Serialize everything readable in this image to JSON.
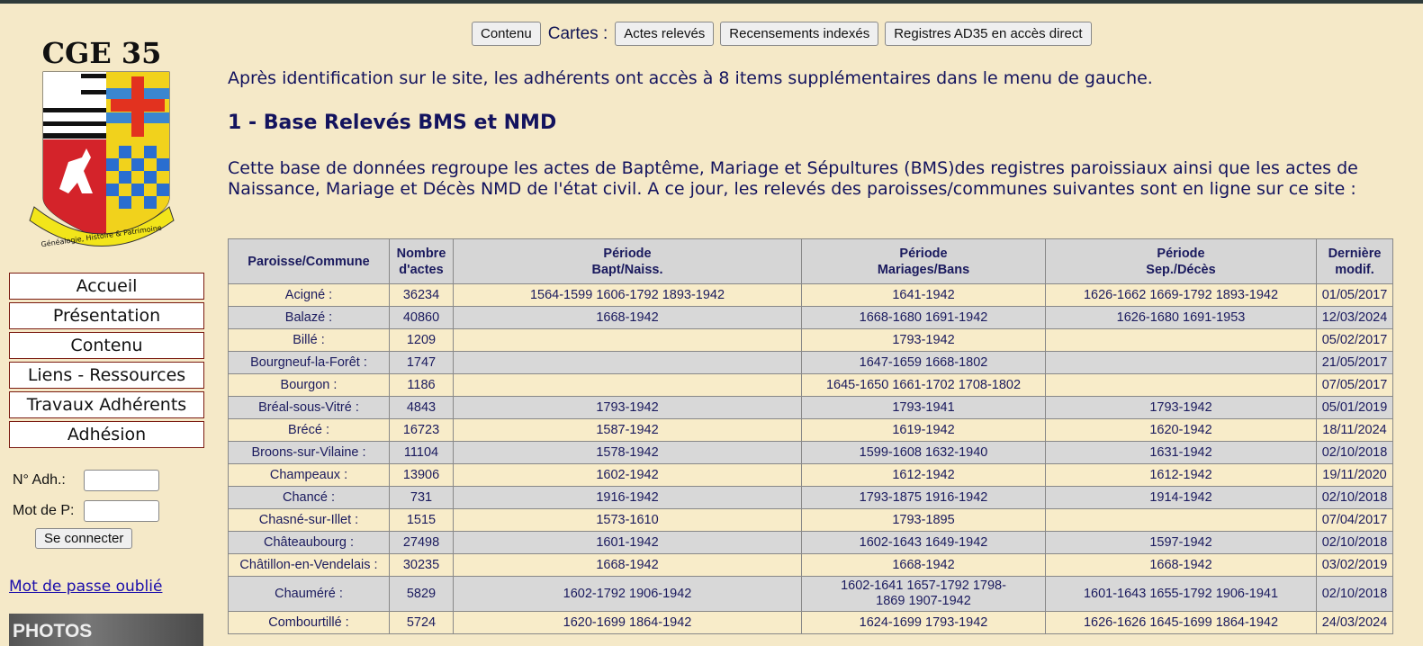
{
  "logo": {
    "title": "CGE 35",
    "ribbon": "Généalogie, Histoire & Patrimoine"
  },
  "sidebar": {
    "menu": [
      "Accueil",
      "Présentation",
      "Contenu",
      "Liens - Ressources",
      "Travaux Adhérents",
      "Adhésion"
    ],
    "login": {
      "member_label": "N° Adh.:",
      "password_label": "Mot de P:",
      "member_value": "",
      "password_value": "",
      "submit": "Se connecter"
    },
    "forgot": "Mot de passe oublié",
    "banner": "PHOTOS ANCIENNES"
  },
  "topnav": {
    "contenu": "Contenu",
    "cartes": "Cartes :",
    "actes": "Actes relevés",
    "recensements": "Recensements indexés",
    "registres": "Registres AD35 en accès direct"
  },
  "main": {
    "intro": "Après identification sur le site, les adhérents ont accès à 8 items supplémentaires dans le menu de gauche.",
    "heading": "1 - Base Relevés BMS et NMD",
    "description": "Cette base de données regroupe les actes de Baptême, Mariage et Sépultures (BMS)des registres paroissiaux ainsi que les actes de Naissance, Mariage et Décès NMD de l'état civil. A ce jour, les relevés des paroisses/communes suivantes sont en ligne sur ce site :"
  },
  "table": {
    "headers": [
      [
        "Paroisse/Commune"
      ],
      [
        "Nombre",
        "d'actes"
      ],
      [
        "Période",
        "Bapt/Naiss."
      ],
      [
        "Période",
        "Mariages/Bans"
      ],
      [
        "Période",
        "Sep./Décès"
      ],
      [
        "Dernière",
        "modif."
      ]
    ],
    "rows": [
      [
        "Acigné :",
        "36234",
        "1564-1599 1606-1792 1893-1942",
        "1641-1942",
        "1626-1662 1669-1792 1893-1942",
        "01/05/2017"
      ],
      [
        "Balazé :",
        "40860",
        "1668-1942",
        "1668-1680 1691-1942",
        "1626-1680 1691-1953",
        "12/03/2024"
      ],
      [
        "Billé :",
        "1209",
        "",
        "1793-1942",
        "",
        "05/02/2017"
      ],
      [
        "Bourgneuf-la-Forêt :",
        "1747",
        "",
        "1647-1659 1668-1802",
        "",
        "21/05/2017"
      ],
      [
        "Bourgon :",
        "1186",
        "",
        "1645-1650 1661-1702 1708-1802",
        "",
        "07/05/2017"
      ],
      [
        "Bréal-sous-Vitré :",
        "4843",
        "1793-1942",
        "1793-1941",
        "1793-1942",
        "05/01/2019"
      ],
      [
        "Brécé :",
        "16723",
        "1587-1942",
        "1619-1942",
        "1620-1942",
        "18/11/2024"
      ],
      [
        "Broons-sur-Vilaine :",
        "11104",
        "1578-1942",
        "1599-1608 1632-1940",
        "1631-1942",
        "02/10/2018"
      ],
      [
        "Champeaux :",
        "13906",
        "1602-1942",
        "1612-1942",
        "1612-1942",
        "19/11/2020"
      ],
      [
        "Chancé :",
        "731",
        "1916-1942",
        "1793-1875 1916-1942",
        "1914-1942",
        "02/10/2018"
      ],
      [
        "Chasné-sur-Illet :",
        "1515",
        "1573-1610",
        "1793-1895",
        "",
        "07/04/2017"
      ],
      [
        "Châteaubourg :",
        "27498",
        "1601-1942",
        "1602-1643 1649-1942",
        "1597-1942",
        "02/10/2018"
      ],
      [
        "Châtillon-en-Vendelais :",
        "30235",
        "1668-1942",
        "1668-1942",
        "1668-1942",
        "03/02/2019"
      ],
      [
        "Chauméré :",
        "5829",
        "1602-1792 1906-1942",
        "1602-1641 1657-1792 1798-1869 1907-1942",
        "1601-1643 1655-1792 1906-1941",
        "02/10/2018"
      ],
      [
        "Combourtillé :",
        "5724",
        "1620-1699 1864-1942",
        "1624-1699 1793-1942",
        "1626-1626 1645-1699 1864-1942",
        "24/03/2024"
      ]
    ]
  }
}
